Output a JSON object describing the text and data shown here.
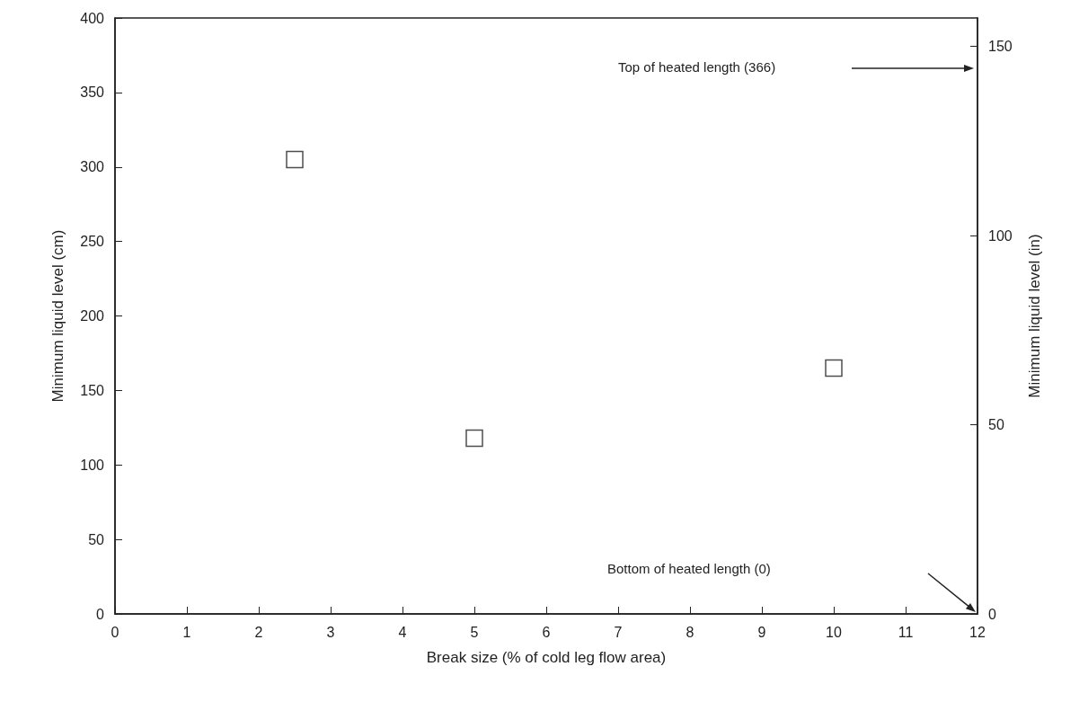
{
  "chart_data": {
    "type": "scatter",
    "xlabel": "Break size (% of cold leg flow area)",
    "ylabel": "Minimum liquid level (cm)",
    "y2label": "Minimum liquid level (in)",
    "x": [
      2.5,
      5,
      10
    ],
    "series": [
      {
        "color": "#222222",
        "values": [
          305,
          118,
          165
        ]
      }
    ],
    "marker": "square",
    "grid": false,
    "xlim": [
      0,
      12
    ],
    "xticks": [
      0,
      1,
      2,
      3,
      4,
      5,
      6,
      7,
      8,
      9,
      10,
      11,
      12
    ],
    "ylim": [
      0,
      400
    ],
    "yticks": [
      0,
      50,
      100,
      150,
      200,
      250,
      300,
      350,
      400
    ],
    "y2lim": [
      0,
      157.5
    ],
    "y2ticks": [
      0,
      50,
      100,
      150
    ],
    "annotations": [
      "Top of heated length (366)",
      "Bottom of heated length (0)"
    ]
  }
}
